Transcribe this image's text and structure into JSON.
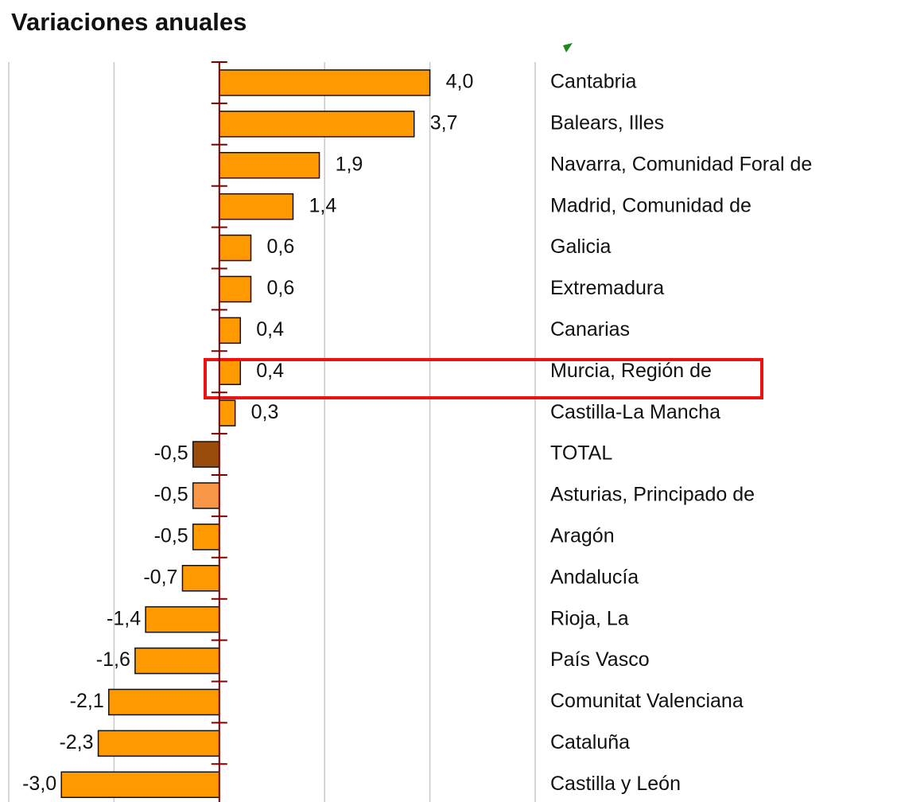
{
  "chart_data": {
    "type": "hbar",
    "title": "Variaciones anuales",
    "categories": [
      "Cantabria",
      "Balears, Illes",
      "Navarra, Comunidad Foral de",
      "Madrid, Comunidad de",
      "Galicia",
      "Extremadura",
      "Canarias",
      "Murcia, Región de",
      "Castilla-La Mancha",
      "TOTAL",
      "Asturias, Principado de",
      "Aragón",
      "Andalucía",
      "Rioja, La",
      "País Vasco",
      "Comunitat Valenciana",
      "Cataluña",
      "Castilla y León"
    ],
    "values": [
      4.0,
      3.7,
      1.9,
      1.4,
      0.6,
      0.6,
      0.4,
      0.4,
      0.3,
      -0.5,
      -0.5,
      -0.5,
      -0.7,
      -1.4,
      -1.6,
      -2.1,
      -2.3,
      -3.0
    ],
    "value_labels": [
      "4,0",
      "3,7",
      "1,9",
      "1,4",
      "0,6",
      "0,6",
      "0,4",
      "0,4",
      "0,3",
      "-0,5",
      "-0,5",
      "-0,5",
      "-0,7",
      "-1,4",
      "-1,6",
      "-2,1",
      "-2,3",
      "-3,0"
    ],
    "colors": [
      "#ff9900",
      "#ff9900",
      "#ff9900",
      "#ff9900",
      "#ff9900",
      "#ff9900",
      "#ff9900",
      "#ff9900",
      "#ff9900",
      "#994c0c",
      "#f79646",
      "#ff9900",
      "#ff9900",
      "#ff9900",
      "#ff9900",
      "#ff9900",
      "#ff9900",
      "#ff9900"
    ],
    "xlim": [
      -4,
      6
    ],
    "xticks": [
      -4,
      -2,
      0,
      2,
      4,
      6
    ],
    "grid": true
  }
}
